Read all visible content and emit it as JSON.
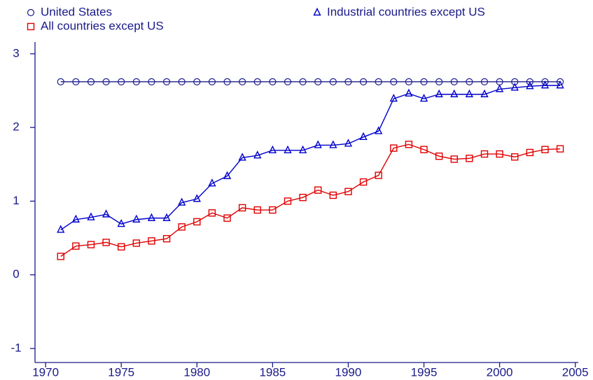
{
  "chart_data": {
    "type": "line",
    "x": [
      1971,
      1972,
      1973,
      1974,
      1975,
      1976,
      1977,
      1978,
      1979,
      1980,
      1981,
      1982,
      1983,
      1984,
      1985,
      1986,
      1987,
      1988,
      1989,
      1990,
      1991,
      1992,
      1993,
      1994,
      1995,
      1996,
      1997,
      1998,
      1999,
      2000,
      2001,
      2002,
      2003,
      2004
    ],
    "series": [
      {
        "name": "United States",
        "color": "#1c1c8c",
        "marker": "circle",
        "values": [
          2.62,
          2.62,
          2.62,
          2.62,
          2.62,
          2.62,
          2.62,
          2.62,
          2.62,
          2.62,
          2.62,
          2.62,
          2.62,
          2.62,
          2.62,
          2.62,
          2.62,
          2.62,
          2.62,
          2.62,
          2.62,
          2.62,
          2.62,
          2.62,
          2.62,
          2.62,
          2.62,
          2.62,
          2.62,
          2.62,
          2.62,
          2.62,
          2.62,
          2.62
        ]
      },
      {
        "name": "Industrial countries except US",
        "color": "#0000cc",
        "marker": "triangle",
        "values": [
          0.61,
          0.75,
          0.78,
          0.82,
          0.69,
          0.75,
          0.77,
          0.77,
          0.98,
          1.03,
          1.24,
          1.34,
          1.59,
          1.62,
          1.69,
          1.69,
          1.69,
          1.76,
          1.76,
          1.78,
          1.87,
          1.95,
          2.39,
          2.46,
          2.39,
          2.45,
          2.45,
          2.45,
          2.45,
          2.52,
          2.54,
          2.56,
          2.57,
          2.57
        ]
      },
      {
        "name": "All countries except US",
        "color": "#e00000",
        "marker": "square",
        "values": [
          0.25,
          0.39,
          0.41,
          0.44,
          0.38,
          0.43,
          0.46,
          0.49,
          0.65,
          0.72,
          0.84,
          0.77,
          0.91,
          0.88,
          0.88,
          1.0,
          1.05,
          1.15,
          1.08,
          1.13,
          1.26,
          1.35,
          1.72,
          1.77,
          1.7,
          1.61,
          1.57,
          1.58,
          1.64,
          1.64,
          1.6,
          1.66,
          1.7,
          1.71
        ]
      }
    ],
    "xlim": [
      1969.3,
      2005.2
    ],
    "xticks": [
      1970,
      1975,
      1980,
      1985,
      1990,
      1995,
      2000,
      2005
    ],
    "ylim": [
      -1.19,
      3.16
    ],
    "yticks": [
      -1,
      0,
      1,
      2,
      3
    ]
  }
}
